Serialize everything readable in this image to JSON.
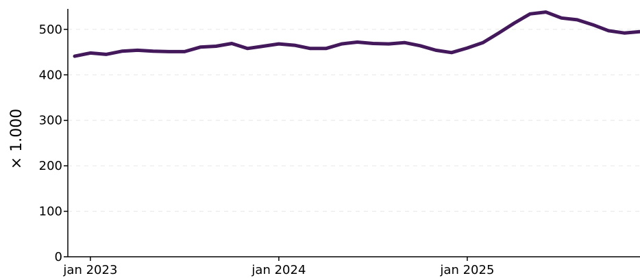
{
  "chart_data": {
    "type": "line",
    "ylabel": "× 1.000",
    "ylim": [
      0,
      545
    ],
    "y_ticks": [
      0,
      100,
      200,
      300,
      400,
      500
    ],
    "x_ticks": [
      {
        "label": "jan 2023",
        "x": "2023-01"
      },
      {
        "label": "jan 2024",
        "x": "2024-01"
      },
      {
        "label": "jan 2025",
        "x": "2025-01"
      }
    ],
    "xlim": [
      "2022-12",
      "2025-12"
    ],
    "grid": "horizontal dashed",
    "series": [
      {
        "color": "#44195c",
        "x": [
          "2022-12",
          "2023-01",
          "2023-02",
          "2023-03",
          "2023-04",
          "2023-05",
          "2023-06",
          "2023-07",
          "2023-08",
          "2023-09",
          "2023-10",
          "2023-11",
          "2023-12",
          "2024-01",
          "2024-02",
          "2024-03",
          "2024-04",
          "2024-05",
          "2024-06",
          "2024-07",
          "2024-08",
          "2024-09",
          "2024-10",
          "2024-11",
          "2024-12",
          "2025-01",
          "2025-02",
          "2025-03",
          "2025-04",
          "2025-05",
          "2025-06",
          "2025-07",
          "2025-08",
          "2025-09",
          "2025-10",
          "2025-11",
          "2025-12"
        ],
        "values": [
          441,
          448,
          445,
          452,
          454,
          452,
          451,
          451,
          461,
          463,
          469,
          458,
          463,
          468,
          465,
          458,
          458,
          468,
          472,
          469,
          468,
          471,
          464,
          454,
          449,
          459,
          471,
          492,
          514,
          534,
          538,
          525,
          521,
          510,
          497,
          492,
          495
        ]
      }
    ]
  }
}
